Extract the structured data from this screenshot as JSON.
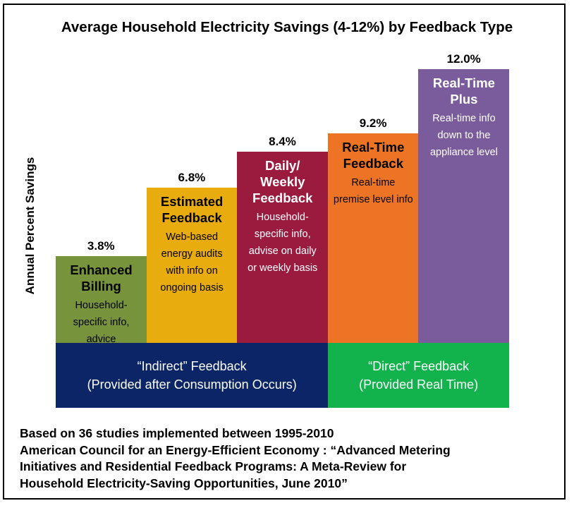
{
  "chart_data": {
    "type": "bar",
    "title": "Average Household Electricity Savings (4-12%) by Feedback Type",
    "ylabel": "Annual Percent Savings",
    "ylim": [
      0,
      12
    ],
    "categories": [
      "Enhanced Billing",
      "Estimated Feedback",
      "Daily/ Weekly Feedback",
      "Real-Time Feedback",
      "Real-Time Plus"
    ],
    "values": [
      3.8,
      6.8,
      8.4,
      9.2,
      12.0
    ],
    "value_labels": [
      "3.8%",
      "6.8%",
      "8.4%",
      "9.2%",
      "12.0%"
    ],
    "bars": [
      {
        "name": "Enhanced Billing",
        "desc": "Household-specific info, advice",
        "color": "#77933c",
        "text_color": "dark"
      },
      {
        "name": "Estimated Feedback",
        "desc": "Web-based energy audits with info on ongoing basis",
        "color": "#e8ac0f",
        "text_color": "dark"
      },
      {
        "name": "Daily/ Weekly Feedback",
        "desc": "Household-specific info, advise on daily or weekly basis",
        "color": "#9b1b3e",
        "text_color": "light"
      },
      {
        "name": "Real-Time Feedback",
        "desc": "Real-time premise level info",
        "color": "#ed7425",
        "text_color": "dark"
      },
      {
        "name": "Real-Time Plus",
        "desc": "Real-time info down to the appliance level",
        "color": "#7a5c9c",
        "text_color": "light"
      }
    ],
    "groups": [
      {
        "line1": "“Indirect” Feedback",
        "line2": "(Provided after Consumption Occurs)",
        "color": "#0b2567",
        "bars": [
          0,
          1,
          2
        ]
      },
      {
        "line1": "“Direct” Feedback",
        "line2": "(Provided Real Time)",
        "color": "#12b34c",
        "bars": [
          3,
          4
        ]
      }
    ],
    "grid": false,
    "legend": "none"
  },
  "footer": {
    "line1": "Based on 36 studies implemented between 1995-2010",
    "line2": "American Council for an Energy-Efficient Economy : “Advanced Metering",
    "line3": "Initiatives and Residential Feedback Programs: A Meta-Review for",
    "line4": "Household Electricity-Saving Opportunities, June 2010”"
  }
}
